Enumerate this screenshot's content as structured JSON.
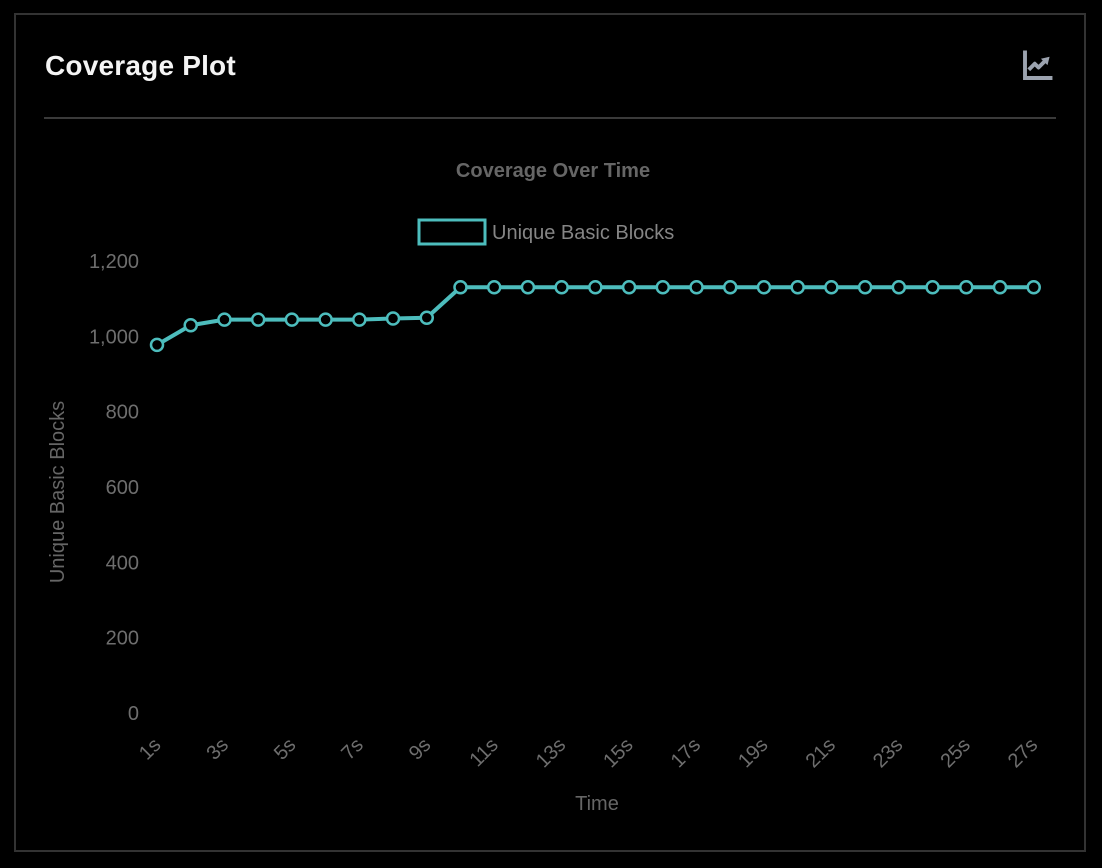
{
  "card": {
    "title": "Coverage Plot",
    "header_icon": "chart-line"
  },
  "chart_data": {
    "type": "line",
    "title": "Coverage Over Time",
    "xlabel": "Time",
    "ylabel": "Unique Basic Blocks",
    "x_unit": "s",
    "x": [
      1,
      2,
      3,
      4,
      5,
      6,
      7,
      8,
      9,
      10,
      11,
      12,
      13,
      14,
      15,
      16,
      17,
      18,
      19,
      20,
      21,
      22,
      23,
      24,
      25,
      26,
      27
    ],
    "x_tick_labels": [
      "1s",
      "3s",
      "5s",
      "7s",
      "9s",
      "11s",
      "13s",
      "15s",
      "17s",
      "19s",
      "21s",
      "23s",
      "25s",
      "27s"
    ],
    "series": [
      {
        "name": "Unique Basic Blocks",
        "color": "#4dbdbd",
        "point_style": "hollow-circle",
        "values": [
          980,
          1032,
          1047,
          1047,
          1047,
          1047,
          1047,
          1050,
          1052,
          1133,
          1133,
          1133,
          1133,
          1133,
          1133,
          1133,
          1133,
          1133,
          1133,
          1133,
          1133,
          1133,
          1133,
          1133,
          1133,
          1133,
          1133
        ]
      }
    ],
    "y_ticks": [
      0,
      200,
      400,
      600,
      800,
      1000,
      1200
    ],
    "ylim": [
      0,
      1200
    ],
    "grid": false,
    "legend_position": "top",
    "background": "#000000",
    "text_color": "#666666"
  }
}
